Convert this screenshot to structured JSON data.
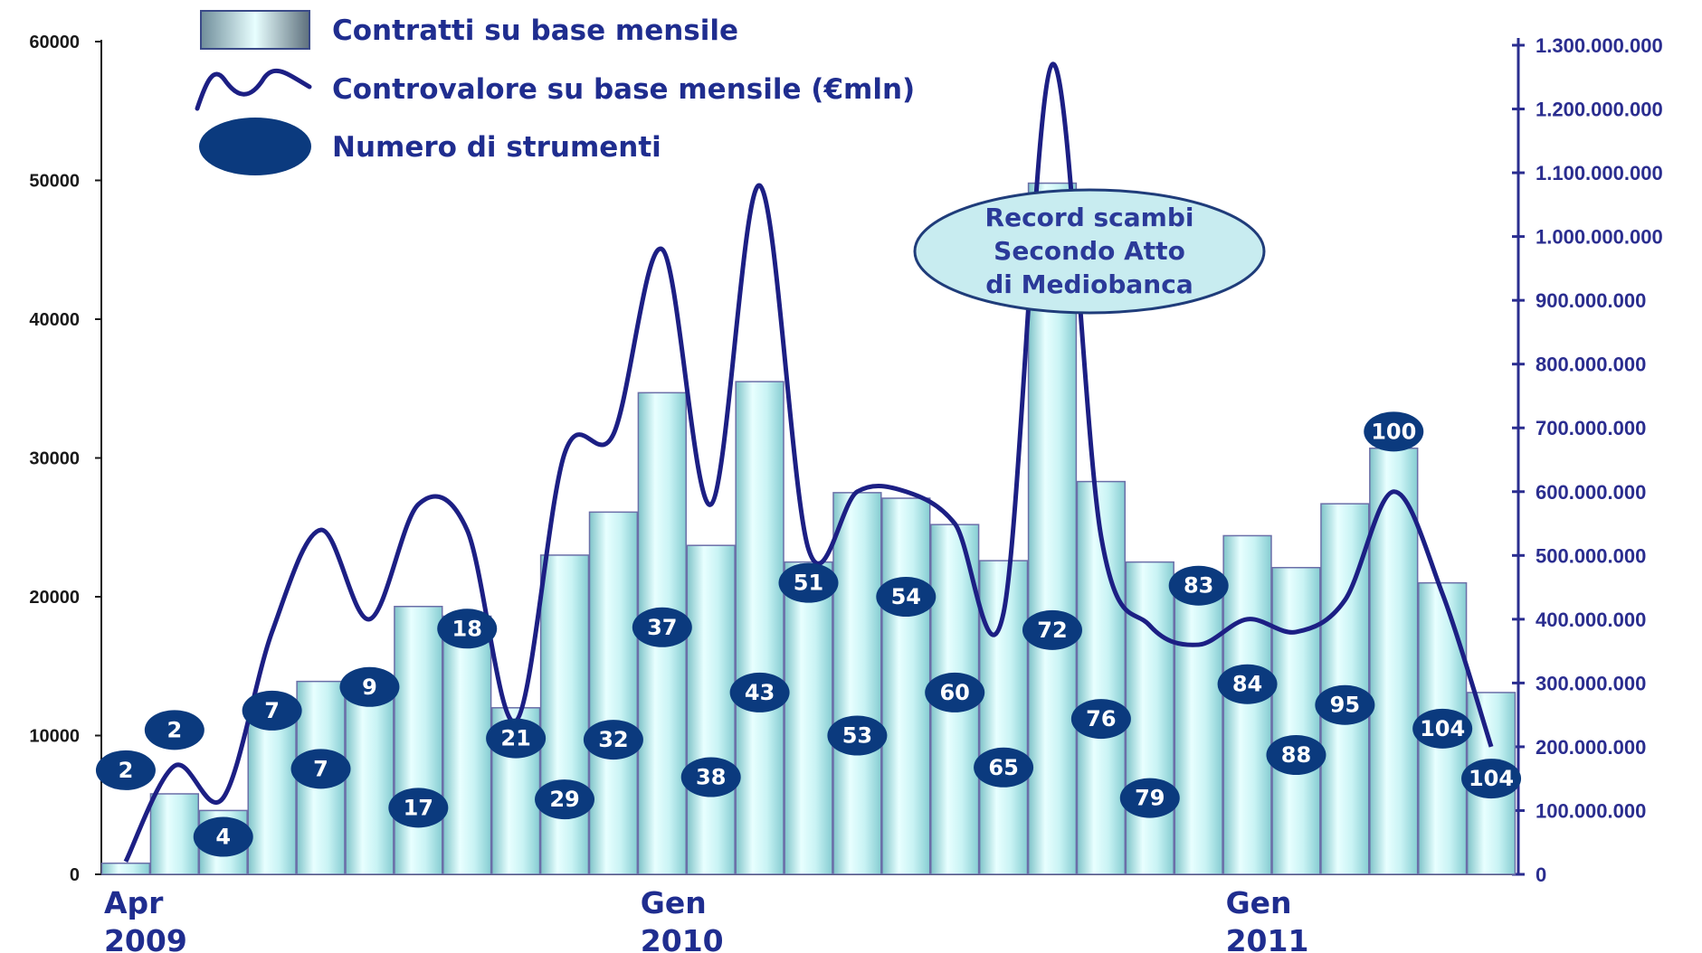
{
  "legend": {
    "bars_label": "Contratti su base mensile",
    "line_label": "Controvalore su base mensile (€mln)",
    "bubbles_label": "Numero di strumenti"
  },
  "annotation": {
    "lines": [
      "Record scambi",
      "Secondo Atto",
      "di Mediobanca"
    ]
  },
  "x_labels": [
    {
      "index": 0,
      "lines": [
        "Apr",
        "2009"
      ]
    },
    {
      "index": 11,
      "lines": [
        "Gen",
        "2010"
      ]
    },
    {
      "index": 23,
      "lines": [
        "Gen",
        "2011"
      ]
    }
  ],
  "colors": {
    "bar_edge": "#6b6fa8",
    "bar_center": "#e8ffff",
    "bar_side": "#8fd4d8",
    "line": "#1c1f84",
    "bubble": "#0b3a7e",
    "axis": "#2a2d8f",
    "annotation_fill": "#c8ecf0",
    "annotation_stroke": "#1f3c7a"
  },
  "chart_data": {
    "type": "bar",
    "series": [
      {
        "name": "Contratti su base mensile",
        "axis": "left",
        "values": [
          800,
          5800,
          4600,
          12200,
          13900,
          13500,
          19300,
          18600,
          12000,
          23000,
          26100,
          34700,
          23700,
          35500,
          22500,
          27500,
          27100,
          25200,
          22600,
          49800,
          28300,
          22500,
          21300,
          24400,
          22100,
          26700,
          30700,
          21000,
          13100
        ]
      },
      {
        "name": "Controvalore su base mensile (€mln)",
        "type": "line",
        "axis": "right",
        "values": [
          20000000,
          170000000,
          120000000,
          380000000,
          540000000,
          400000000,
          580000000,
          540000000,
          240000000,
          660000000,
          690000000,
          980000000,
          580000000,
          1080000000,
          510000000,
          600000000,
          600000000,
          550000000,
          410000000,
          1270000000,
          530000000,
          390000000,
          360000000,
          400000000,
          380000000,
          430000000,
          600000000,
          440000000,
          200000000
        ]
      },
      {
        "name": "Numero di strumenti",
        "type": "bubble",
        "values": [
          2,
          2,
          4,
          7,
          7,
          9,
          17,
          18,
          21,
          29,
          32,
          37,
          38,
          43,
          51,
          53,
          54,
          60,
          65,
          72,
          76,
          79,
          83,
          84,
          88,
          95,
          100,
          104,
          104
        ],
        "positions_y": [
          7500,
          10400,
          2700,
          11800,
          7600,
          13500,
          4800,
          17700,
          9800,
          5400,
          9700,
          17800,
          7000,
          13100,
          21000,
          10000,
          20000,
          13100,
          7700,
          17600,
          11200,
          5500,
          20800,
          13700,
          8600,
          12200,
          31900,
          10500,
          6900
        ]
      }
    ],
    "y_left": {
      "min": 0,
      "max": 60000,
      "ticks": [
        "0",
        "10000",
        "20000",
        "30000",
        "40000",
        "50000",
        "60000"
      ]
    },
    "y_right": {
      "min": 0,
      "max": 1300000000,
      "ticks": [
        "0",
        "100.000.000",
        "200.000.000",
        "300.000.000",
        "400.000.000",
        "500.000.000",
        "600.000.000",
        "700.000.000",
        "800.000.000",
        "900.000.000",
        "1.000.000.000",
        "1.100.000.000",
        "1.200.000.000",
        "1.300.000.000"
      ]
    },
    "grid": false,
    "legend_position": "top-left"
  }
}
